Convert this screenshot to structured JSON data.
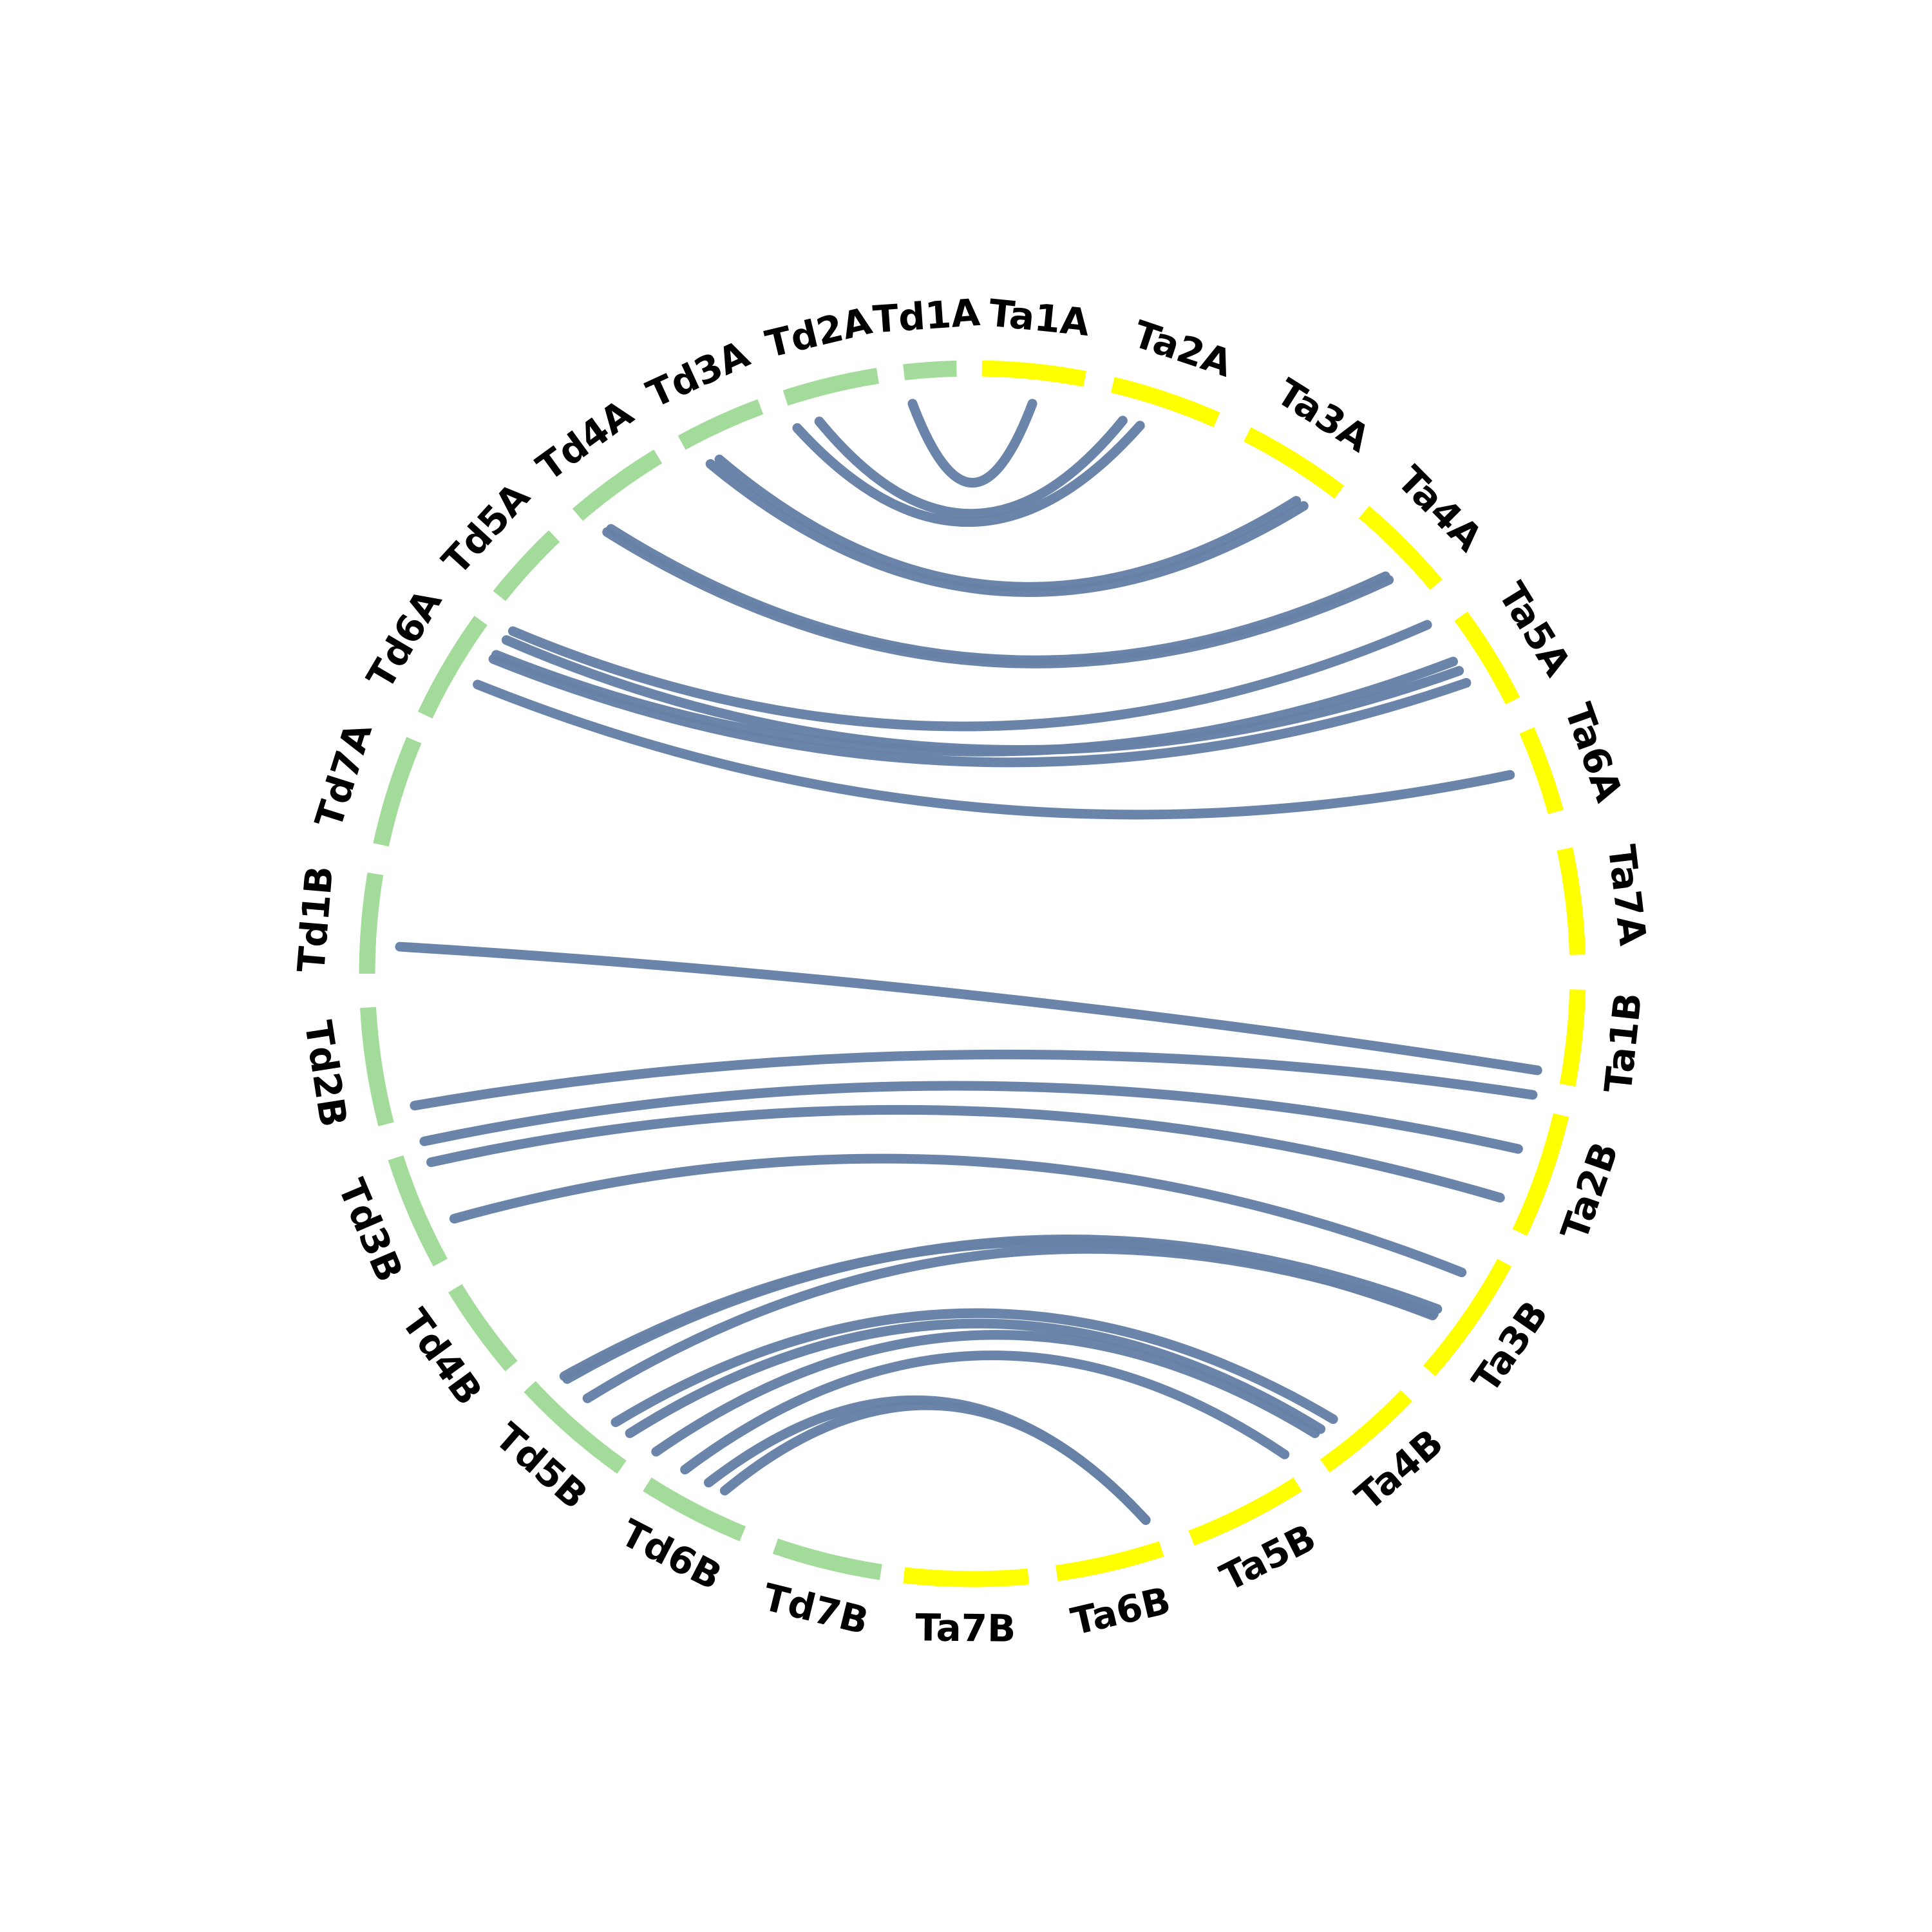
{
  "colors": {
    "ta_chromosomes": "#ffff00",
    "td_chromosomes": "#a3dc9a",
    "links": "#6680a6",
    "background": "#ffffff",
    "label": "#000000"
  },
  "chart_data": {
    "type": "circos",
    "title": "",
    "chromosomes": [
      {
        "id": "Ta1A",
        "label": "Ta1A",
        "group": "Ta",
        "start_deg": 0.9,
        "end_deg": 10.7
      },
      {
        "id": "Ta2A",
        "label": "Ta2A",
        "group": "Ta",
        "start_deg": 13.4,
        "end_deg": 23.8
      },
      {
        "id": "Ta3A",
        "label": "Ta3A",
        "group": "Ta",
        "start_deg": 27.0,
        "end_deg": 37.3
      },
      {
        "id": "Ta4A",
        "label": "Ta4A",
        "group": "Ta",
        "start_deg": 40.3,
        "end_deg": 50.0
      },
      {
        "id": "Ta5A",
        "label": "Ta5A",
        "group": "Ta",
        "start_deg": 53.8,
        "end_deg": 63.2
      },
      {
        "id": "Ta6A",
        "label": "Ta6A",
        "group": "Ta",
        "start_deg": 66.3,
        "end_deg": 74.5
      },
      {
        "id": "Ta7A",
        "label": "Ta7A",
        "group": "Ta",
        "start_deg": 78.1,
        "end_deg": 88.2
      },
      {
        "id": "Ta1B",
        "label": "Ta1B",
        "group": "Ta",
        "start_deg": 91.5,
        "end_deg": 100.6
      },
      {
        "id": "Ta2B",
        "label": "Ta2B",
        "group": "Ta",
        "start_deg": 103.5,
        "end_deg": 115.3
      },
      {
        "id": "Ta3B",
        "label": "Ta3B",
        "group": "Ta",
        "start_deg": 118.5,
        "end_deg": 131.0
      },
      {
        "id": "Ta4B",
        "label": "Ta4B",
        "group": "Ta",
        "start_deg": 134.2,
        "end_deg": 144.4
      },
      {
        "id": "Ta5B",
        "label": "Ta5B",
        "group": "Ta",
        "start_deg": 147.5,
        "end_deg": 158.8
      },
      {
        "id": "Ta6B",
        "label": "Ta6B",
        "group": "Ta",
        "start_deg": 161.8,
        "end_deg": 172.0
      },
      {
        "id": "Ta7B",
        "label": "Ta7B",
        "group": "Ta",
        "start_deg": 174.7,
        "end_deg": 186.5
      },
      {
        "id": "Td7B",
        "label": "Td7B",
        "group": "Td",
        "start_deg": 188.7,
        "end_deg": 199.0
      },
      {
        "id": "Td6B",
        "label": "Td6B",
        "group": "Td",
        "start_deg": 202.3,
        "end_deg": 212.5
      },
      {
        "id": "Td5B",
        "label": "Td5B",
        "group": "Td",
        "start_deg": 215.4,
        "end_deg": 227.0
      },
      {
        "id": "Td4B",
        "label": "Td4B",
        "group": "Td",
        "start_deg": 229.6,
        "end_deg": 238.7
      },
      {
        "id": "Td3B",
        "label": "Td3B",
        "group": "Td",
        "start_deg": 241.5,
        "end_deg": 252.3
      },
      {
        "id": "Td2B",
        "label": "Td2B",
        "group": "Td",
        "start_deg": 255.6,
        "end_deg": 266.8
      },
      {
        "id": "Td1B",
        "label": "Td1B",
        "group": "Td",
        "start_deg": 270.0,
        "end_deg": 279.5
      },
      {
        "id": "Td7A",
        "label": "Td7A",
        "group": "Td",
        "start_deg": 282.3,
        "end_deg": 292.7
      },
      {
        "id": "Td6A",
        "label": "Td6A",
        "group": "Td",
        "start_deg": 295.3,
        "end_deg": 305.7
      },
      {
        "id": "Td5A",
        "label": "Td5A",
        "group": "Td",
        "start_deg": 308.6,
        "end_deg": 316.3
      },
      {
        "id": "Td4A",
        "label": "Td4A",
        "group": "Td",
        "start_deg": 319.3,
        "end_deg": 328.7
      },
      {
        "id": "Td3A",
        "label": "Td3A",
        "group": "Td",
        "start_deg": 331.3,
        "end_deg": 339.5
      },
      {
        "id": "Td2A",
        "label": "Td2A",
        "group": "Td",
        "start_deg": 342.0,
        "end_deg": 351.0
      },
      {
        "id": "Td1A",
        "label": "Td1A",
        "group": "Td",
        "start_deg": 353.5,
        "end_deg": 358.5
      }
    ],
    "links": [
      {
        "from_deg": 354.0,
        "to_deg": 6.0
      },
      {
        "from_deg": 344.5,
        "to_deg": 15.2
      },
      {
        "from_deg": 342.2,
        "to_deg": 17.0
      },
      {
        "from_deg": 333.8,
        "to_deg": 34.4
      },
      {
        "from_deg": 332.8,
        "to_deg": 35.3
      },
      {
        "from_deg": 320.9,
        "to_deg": 46.1
      },
      {
        "from_deg": 320.4,
        "to_deg": 46.6
      },
      {
        "from_deg": 306.7,
        "to_deg": 52.5
      },
      {
        "from_deg": 305.6,
        "to_deg": 58.1
      },
      {
        "from_deg": 303.8,
        "to_deg": 57.0
      },
      {
        "from_deg": 303.3,
        "to_deg": 59.5
      },
      {
        "from_deg": 300.3,
        "to_deg": 69.7
      },
      {
        "from_deg": 272.7,
        "to_deg": 99.7
      },
      {
        "from_deg": 256.7,
        "to_deg": 102.2
      },
      {
        "from_deg": 253.0,
        "to_deg": 107.8
      },
      {
        "from_deg": 250.8,
        "to_deg": 113.0
      },
      {
        "from_deg": 244.7,
        "to_deg": 121.4
      },
      {
        "from_deg": 225.0,
        "to_deg": 125.8
      },
      {
        "from_deg": 225.4,
        "to_deg": 126.6
      },
      {
        "from_deg": 222.2,
        "to_deg": 126.4
      },
      {
        "from_deg": 218.5,
        "to_deg": 141.0
      },
      {
        "from_deg": 216.7,
        "to_deg": 142.6
      },
      {
        "from_deg": 213.5,
        "to_deg": 143.3
      },
      {
        "from_deg": 210.1,
        "to_deg": 147.0
      },
      {
        "from_deg": 207.4,
        "to_deg": 162.4
      },
      {
        "from_deg": 205.6,
        "to_deg": 162.4
      }
    ]
  }
}
